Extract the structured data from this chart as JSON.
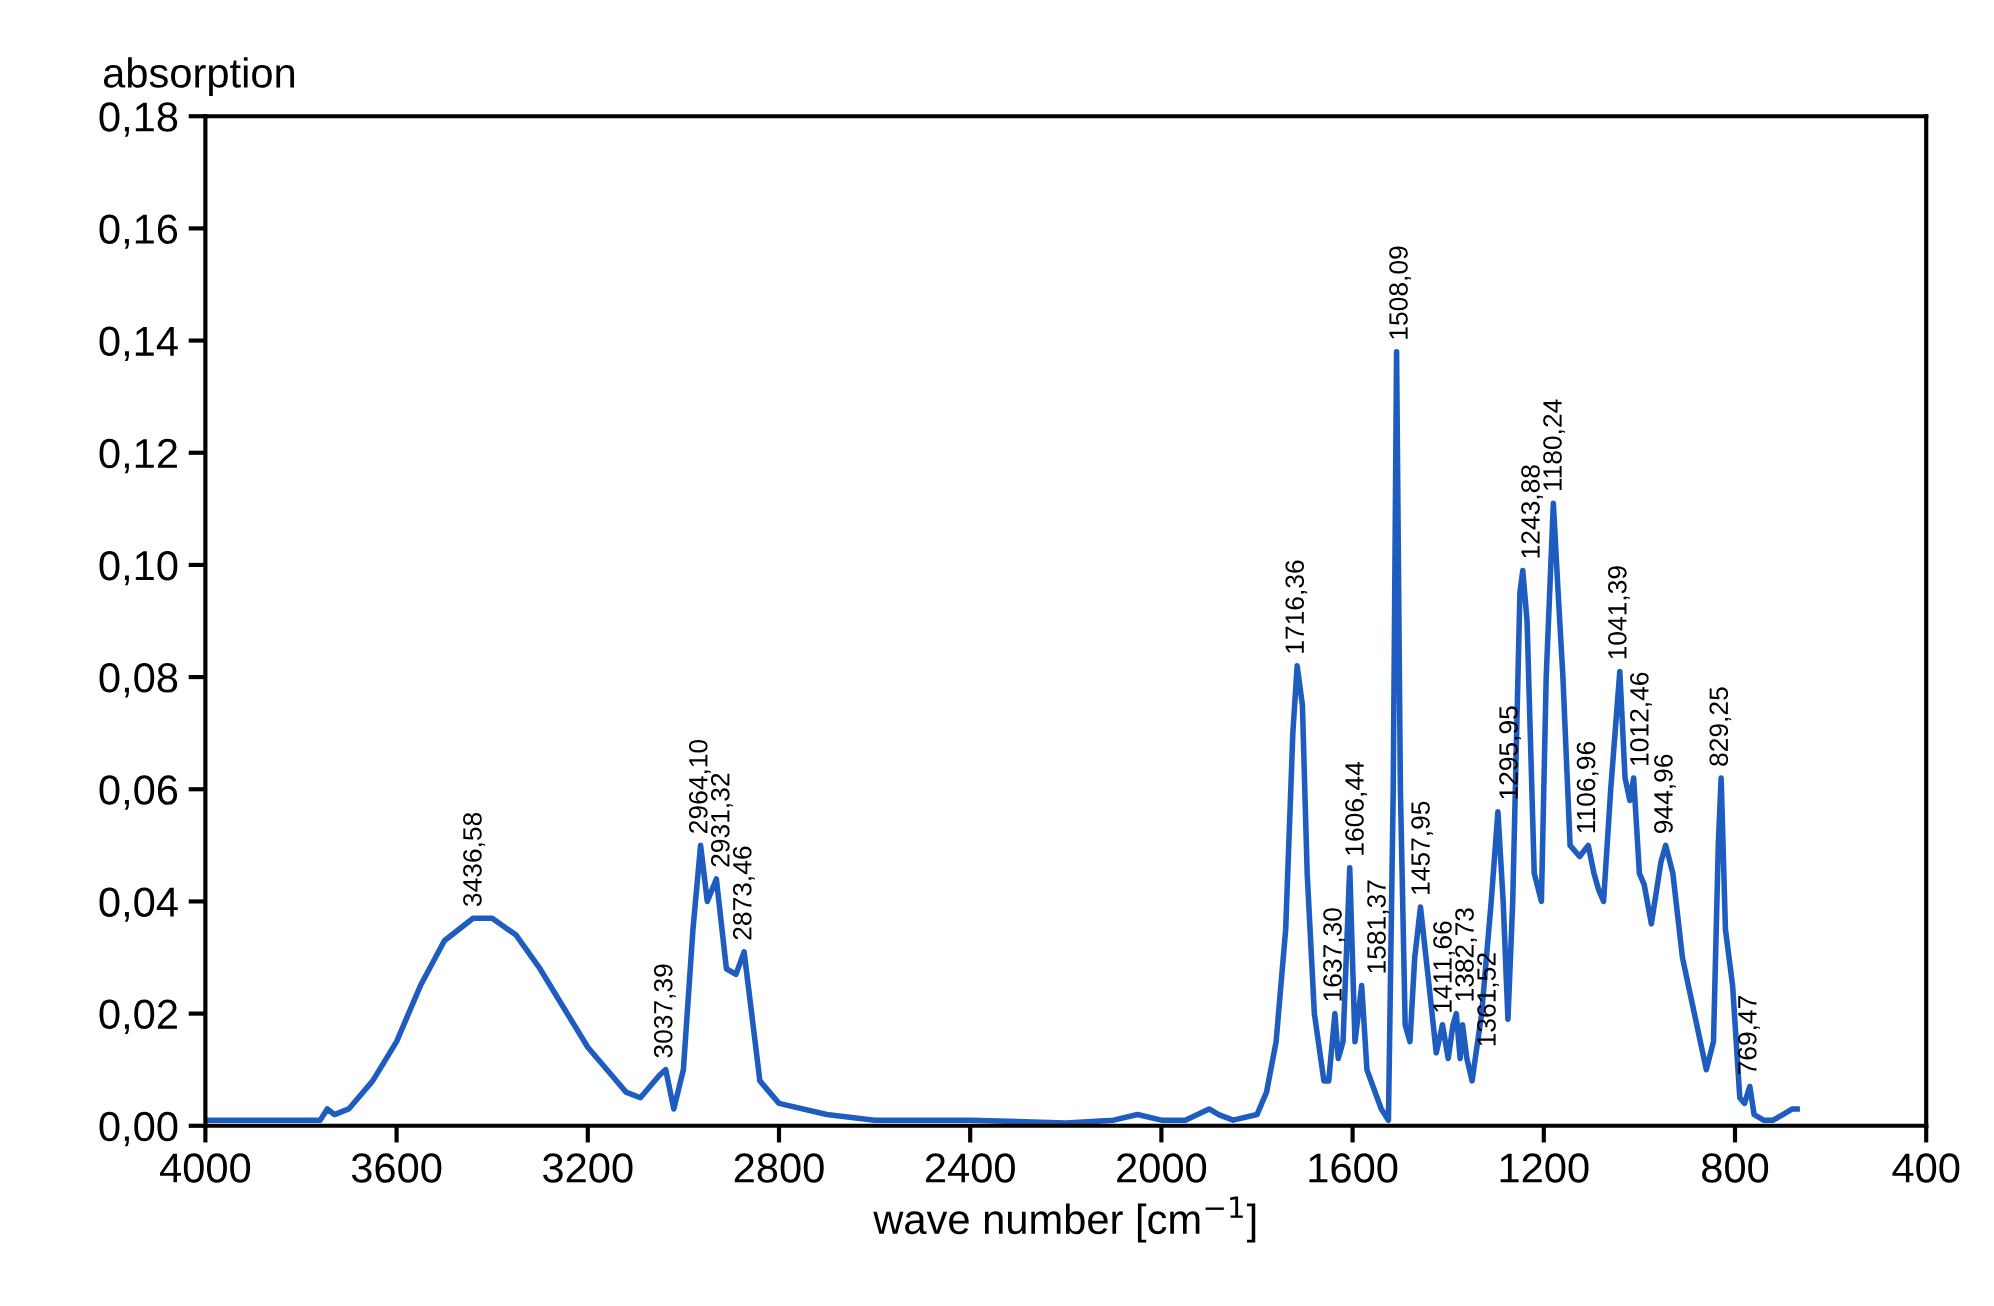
{
  "chart_data": {
    "type": "line",
    "ylabel": "absorption",
    "xlabel": "wave number [cm$^{−1}$]",
    "xlim": [
      4000,
      400
    ],
    "xticks": [
      4000,
      3600,
      3200,
      2800,
      2400,
      2000,
      1600,
      1200,
      800,
      400
    ],
    "ylim": [
      0,
      0.18
    ],
    "yticks": [
      {
        "value": 0,
        "label": "0,00"
      },
      {
        "value": 0.02,
        "label": "0,02"
      },
      {
        "value": 0.04,
        "label": "0,04"
      },
      {
        "value": 0.06,
        "label": "0,06"
      },
      {
        "value": 0.08,
        "label": "0,08"
      },
      {
        "value": 0.1,
        "label": "0,10"
      },
      {
        "value": 0.12,
        "label": "0,12"
      },
      {
        "value": 0.14,
        "label": "0,14"
      },
      {
        "value": 0.16,
        "label": "0,16"
      },
      {
        "value": 0.18,
        "label": "0,18"
      }
    ],
    "grid": false,
    "legend": false,
    "marker": "none",
    "line_style": "solid",
    "series": [
      {
        "color": "#1f5cc0",
        "x": [
          4000,
          3900,
          3800,
          3760,
          3745,
          3730,
          3700,
          3650,
          3600,
          3550,
          3500,
          3440,
          3400,
          3350,
          3300,
          3250,
          3200,
          3150,
          3120,
          3090,
          3070,
          3050,
          3037,
          3020,
          3000,
          2980,
          2964,
          2950,
          2931,
          2910,
          2890,
          2873,
          2860,
          2840,
          2800,
          2700,
          2600,
          2400,
          2200,
          2100,
          2050,
          2000,
          1950,
          1900,
          1880,
          1850,
          1800,
          1780,
          1760,
          1740,
          1725,
          1716,
          1705,
          1695,
          1680,
          1660,
          1650,
          1637,
          1630,
          1620,
          1606,
          1595,
          1581,
          1570,
          1540,
          1525,
          1515,
          1508,
          1500,
          1490,
          1480,
          1470,
          1458,
          1440,
          1425,
          1412,
          1400,
          1390,
          1383,
          1375,
          1370,
          1361,
          1350,
          1330,
          1310,
          1296,
          1285,
          1275,
          1265,
          1250,
          1244,
          1235,
          1220,
          1205,
          1195,
          1180,
          1170,
          1160,
          1145,
          1125,
          1107,
          1095,
          1085,
          1075,
          1060,
          1041,
          1030,
          1020,
          1012,
          1000,
          990,
          975,
          955,
          945,
          930,
          910,
          890,
          860,
          845,
          835,
          829,
          820,
          805,
          790,
          780,
          769,
          760,
          740,
          720,
          700,
          680,
          670
        ],
        "values": [
          0.001,
          0.001,
          0.001,
          0.001,
          0.003,
          0.002,
          0.003,
          0.008,
          0.015,
          0.025,
          0.033,
          0.037,
          0.037,
          0.034,
          0.028,
          0.021,
          0.014,
          0.009,
          0.006,
          0.005,
          0.007,
          0.009,
          0.01,
          0.003,
          0.01,
          0.035,
          0.05,
          0.04,
          0.044,
          0.028,
          0.027,
          0.031,
          0.022,
          0.008,
          0.004,
          0.002,
          0.001,
          0.001,
          0.0005,
          0.001,
          0.002,
          0.001,
          0.001,
          0.003,
          0.002,
          0.001,
          0.002,
          0.006,
          0.015,
          0.035,
          0.07,
          0.082,
          0.075,
          0.045,
          0.02,
          0.008,
          0.008,
          0.02,
          0.012,
          0.015,
          0.046,
          0.015,
          0.025,
          0.01,
          0.003,
          0.001,
          0.06,
          0.138,
          0.06,
          0.018,
          0.015,
          0.03,
          0.039,
          0.025,
          0.013,
          0.018,
          0.012,
          0.018,
          0.02,
          0.012,
          0.018,
          0.012,
          0.008,
          0.02,
          0.04,
          0.056,
          0.04,
          0.019,
          0.04,
          0.095,
          0.099,
          0.09,
          0.045,
          0.04,
          0.08,
          0.111,
          0.095,
          0.08,
          0.05,
          0.048,
          0.05,
          0.045,
          0.042,
          0.04,
          0.06,
          0.081,
          0.062,
          0.058,
          0.062,
          0.045,
          0.043,
          0.036,
          0.047,
          0.05,
          0.045,
          0.03,
          0.022,
          0.01,
          0.015,
          0.05,
          0.062,
          0.035,
          0.025,
          0.005,
          0.004,
          0.007,
          0.002,
          0.001,
          0.001,
          0.002,
          0.003,
          0.003
        ]
      }
    ],
    "annotations": [
      {
        "text": "3436,58",
        "x": 3436.58,
        "y": 0.037
      },
      {
        "text": "3037,39",
        "x": 3037.39,
        "y": 0.01
      },
      {
        "text": "2964,10",
        "x": 2964.1,
        "y": 0.05
      },
      {
        "text": "2931,32",
        "x": 2931.32,
        "y": 0.044
      },
      {
        "text": "2873,46",
        "x": 2873.46,
        "y": 0.031
      },
      {
        "text": "1716,36",
        "x": 1716.36,
        "y": 0.082
      },
      {
        "text": "1637,30",
        "x": 1637.3,
        "y": 0.02
      },
      {
        "text": "1606,44",
        "x": 1606.44,
        "y": 0.046
      },
      {
        "text": "1581,37",
        "x": 1581.37,
        "y": 0.025
      },
      {
        "text": "1508,09",
        "x": 1508.09,
        "y": 0.138
      },
      {
        "text": "1457,95",
        "x": 1457.95,
        "y": 0.039
      },
      {
        "text": "1411,66",
        "x": 1411.66,
        "y": 0.018
      },
      {
        "text": "1382,73",
        "x": 1382.73,
        "y": 0.02
      },
      {
        "text": "1361,52",
        "x": 1361.52,
        "y": 0.012
      },
      {
        "text": "1295,95",
        "x": 1295.95,
        "y": 0.056
      },
      {
        "text": "1243,88",
        "x": 1243.88,
        "y": 0.099
      },
      {
        "text": "1180,24",
        "x": 1180.24,
        "y": 0.111
      },
      {
        "text": "1106,96",
        "x": 1106.96,
        "y": 0.05
      },
      {
        "text": "1041,39",
        "x": 1041.39,
        "y": 0.081
      },
      {
        "text": "1012,46",
        "x": 1012.46,
        "y": 0.062
      },
      {
        "text": "944,96",
        "x": 944.96,
        "y": 0.05
      },
      {
        "text": "829,25",
        "x": 829.25,
        "y": 0.062
      },
      {
        "text": "769,47",
        "x": 769.47,
        "y": 0.007
      }
    ]
  }
}
